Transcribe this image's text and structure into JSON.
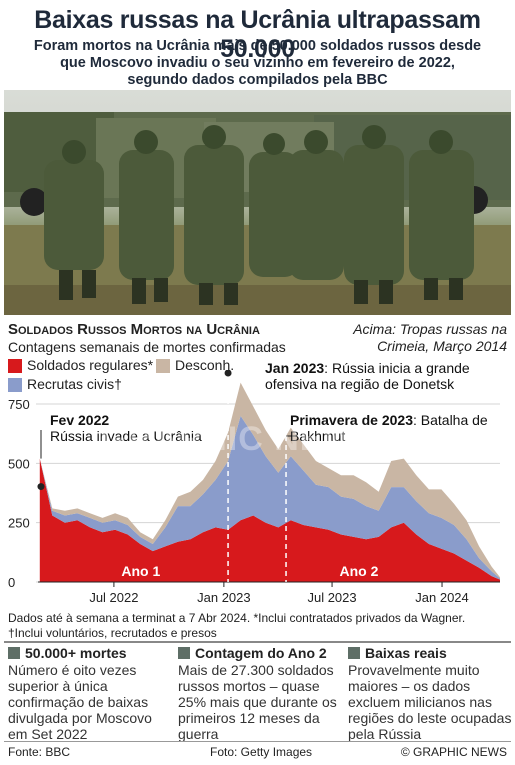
{
  "header": {
    "title": "Baixas russas na Ucrânia ultrapassam 50.000",
    "subtitle": "Foram mortos na Ucrânia mais de 50.000 soldados russos desde que Moscovo invadiu o seu vizinho em fevereiro de 2022, segundo dados compilados pela BBC"
  },
  "photo": {
    "caption": "Acima: Tropas russas na Crimeia, Março 2014"
  },
  "chart_data": {
    "type": "area",
    "title": "Soldados Russos Mortos na Ucrânia",
    "subtitle": "Contagens semanais de mortes confirmadas",
    "x_ticks": [
      "Jul 2022",
      "Jan 2023",
      "Jul 2023",
      "Jan 2024"
    ],
    "y_ticks": [
      "0",
      "250",
      "500",
      "750"
    ],
    "ylim": [
      0,
      750
    ],
    "x_range": [
      "2022-02-24",
      "2024-04-07"
    ],
    "weeks": [
      "2022-02-27",
      "2022-03-20",
      "2022-04-10",
      "2022-05-01",
      "2022-05-22",
      "2022-06-12",
      "2022-07-03",
      "2022-07-24",
      "2022-08-14",
      "2022-09-04",
      "2022-09-25",
      "2022-10-16",
      "2022-11-06",
      "2022-11-27",
      "2022-12-18",
      "2023-01-08",
      "2023-01-29",
      "2023-02-19",
      "2023-03-12",
      "2023-04-02",
      "2023-04-23",
      "2023-05-14",
      "2023-06-04",
      "2023-06-25",
      "2023-07-16",
      "2023-08-06",
      "2023-08-27",
      "2023-09-17",
      "2023-10-08",
      "2023-10-29",
      "2023-11-19",
      "2023-12-10",
      "2023-12-31",
      "2024-01-21",
      "2024-02-11",
      "2024-03-03",
      "2024-03-24",
      "2024-04-07"
    ],
    "series": [
      {
        "name": "Soldados regulares*",
        "color": "#d7191c",
        "values": [
          520,
          280,
          250,
          260,
          230,
          210,
          220,
          200,
          160,
          130,
          150,
          170,
          180,
          210,
          230,
          220,
          260,
          280,
          250,
          230,
          260,
          240,
          230,
          220,
          200,
          190,
          180,
          190,
          230,
          250,
          200,
          160,
          140,
          120,
          90,
          60,
          25,
          10
        ]
      },
      {
        "name": "Recrutas civis†",
        "color": "#8a9ccb",
        "values": [
          0,
          20,
          30,
          30,
          40,
          40,
          40,
          40,
          30,
          30,
          80,
          150,
          140,
          160,
          200,
          290,
          440,
          340,
          280,
          230,
          270,
          230,
          180,
          180,
          160,
          160,
          140,
          110,
          170,
          150,
          140,
          130,
          130,
          120,
          90,
          40,
          20,
          5
        ]
      },
      {
        "name": "Desconh.",
        "color": "#c9b6a4",
        "values": [
          0,
          10,
          20,
          20,
          20,
          20,
          30,
          30,
          20,
          20,
          30,
          40,
          60,
          60,
          80,
          120,
          140,
          120,
          110,
          100,
          120,
          110,
          100,
          80,
          90,
          100,
          100,
          80,
          110,
          120,
          110,
          100,
          120,
          90,
          80,
          50,
          20,
          5
        ]
      }
    ],
    "period_labels": [
      "Ano 1",
      "Ano 2"
    ],
    "annotations": [
      {
        "date": "Fev 2022",
        "text": "Rússia invade a Ucrânia"
      },
      {
        "date": "Jan 2023",
        "text": "Rússia inicia a grande ofensiva na região de Donetsk"
      },
      {
        "date": "Primavera de 2023",
        "text": "Batalha de Bakhmut"
      }
    ]
  },
  "notes": {
    "line1": "Dados até à semana a terminat a 7 Abr 2024. *Inclui contratados privados da Wagner.",
    "line2": "†Inclui voluntários, recrutados e presos"
  },
  "facts": [
    {
      "head": "50.000+ mortes",
      "body": "Número é oito vezes superior à única confirmação de baixas divulgada por Moscovo em Set 2022"
    },
    {
      "head": "Contagem do Ano 2",
      "body": "Mais de 27.300 soldados russos mortos – quase 25% mais que durante os primeiros 12 meses da guerra"
    },
    {
      "head": "Baixas reais",
      "body": "Provavelmente muito maiores – os dados excluem milicianos nas regiões do leste ocupadas pela Rússia"
    }
  ],
  "footer": {
    "source": "Fonte: BBC",
    "photo_credit": "Foto: Getty Images",
    "copyright": "© GRAPHIC NEWS"
  },
  "watermark": "GRAPHIC NEWS"
}
